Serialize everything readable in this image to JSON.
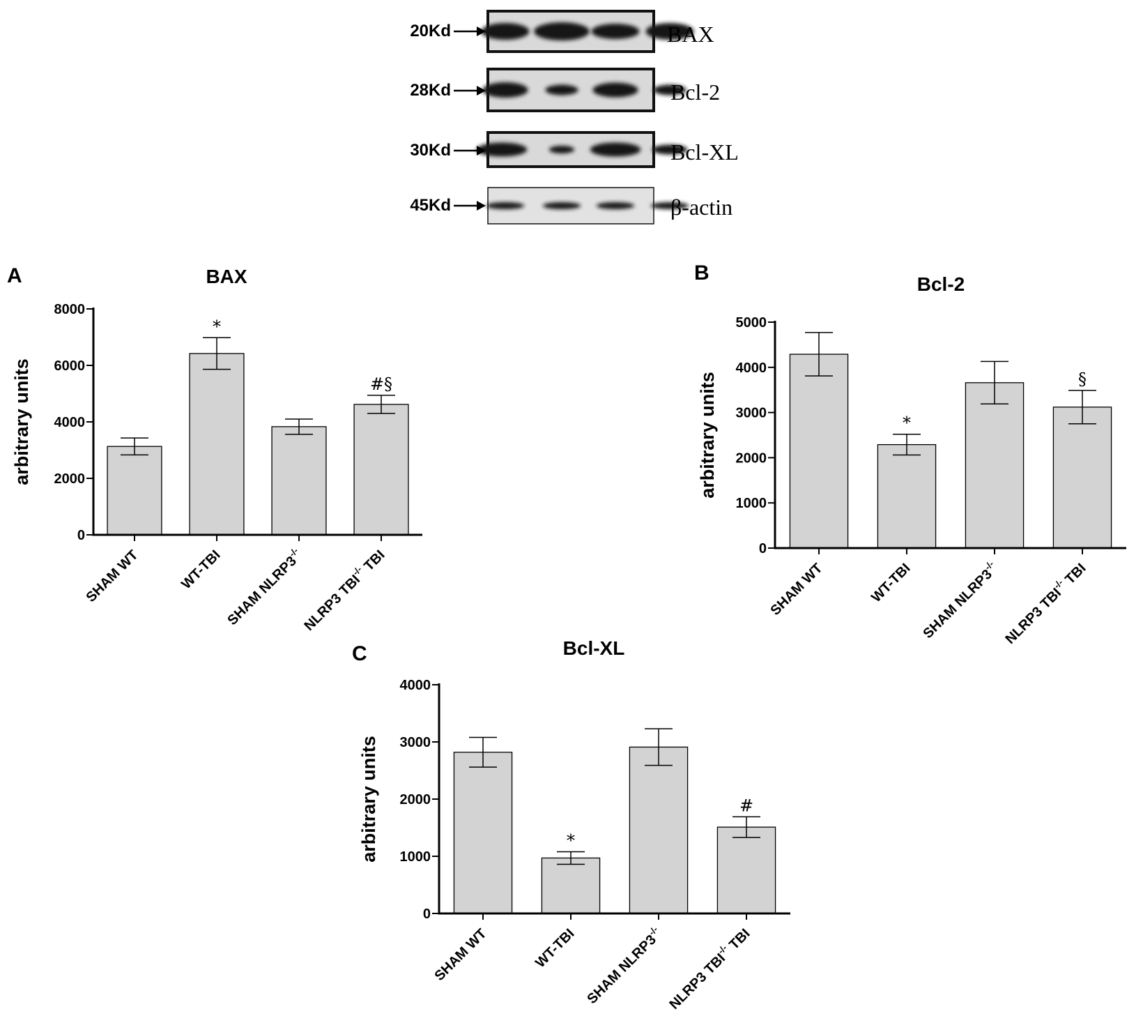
{
  "blot": {
    "rows": [
      {
        "kd": "20Kd",
        "protein": "BAX"
      },
      {
        "kd": "28Kd",
        "protein": "Bcl-2"
      },
      {
        "kd": "30Kd",
        "protein": "Bcl-XL"
      },
      {
        "kd": "45Kd",
        "protein": "β-actin"
      }
    ],
    "colors": {
      "band": "#161616",
      "frame": "#111111",
      "bg": "#d9d9d9"
    }
  },
  "chart_data": [
    {
      "type": "bar",
      "panel": "A",
      "title": "BAX",
      "xlabel": "",
      "ylabel": "arbitrary units",
      "categories": [
        "SHAM WT",
        "WT-TBI",
        "SHAM NLRP3",
        "NLRP3 TBI"
      ],
      "cat_superscript": [
        "",
        "",
        "-/-",
        "-/-"
      ],
      "cat_suffix": [
        "",
        "",
        "",
        " TBI"
      ],
      "values": [
        3130,
        6420,
        3830,
        4620
      ],
      "errors": [
        300,
        560,
        270,
        320
      ],
      "annotations": [
        "",
        "*",
        "",
        "#§"
      ],
      "ylim": [
        0,
        8000
      ],
      "yticks": [
        0,
        2000,
        4000,
        6000,
        8000
      ],
      "grid": false,
      "bar_color": "#d3d3d3"
    },
    {
      "type": "bar",
      "panel": "B",
      "title": "Bcl-2",
      "xlabel": "",
      "ylabel": "arbitrary units",
      "categories": [
        "SHAM WT",
        "WT-TBI",
        "SHAM NLRP3",
        "NLRP3 TBI"
      ],
      "cat_superscript": [
        "",
        "",
        "-/-",
        "-/-"
      ],
      "cat_suffix": [
        "",
        "",
        "",
        " TBI"
      ],
      "values": [
        4290,
        2290,
        3660,
        3120
      ],
      "errors": [
        480,
        230,
        470,
        370
      ],
      "annotations": [
        "",
        "*",
        "",
        "§"
      ],
      "ylim": [
        0,
        5000
      ],
      "yticks": [
        0,
        1000,
        2000,
        3000,
        4000,
        5000
      ],
      "grid": false,
      "bar_color": "#d3d3d3"
    },
    {
      "type": "bar",
      "panel": "C",
      "title": "Bcl-XL",
      "xlabel": "",
      "ylabel": "arbitrary units",
      "categories": [
        "SHAM WT",
        "WT-TBI",
        "SHAM NLRP3",
        "NLRP3 TBI"
      ],
      "cat_superscript": [
        "",
        "",
        "-/-",
        "-/-"
      ],
      "cat_suffix": [
        "",
        "",
        "",
        " TBI"
      ],
      "values": [
        2820,
        970,
        2910,
        1510
      ],
      "errors": [
        260,
        110,
        320,
        180
      ],
      "annotations": [
        "",
        "*",
        "",
        "#"
      ],
      "ylim": [
        0,
        4000
      ],
      "yticks": [
        0,
        1000,
        2000,
        3000,
        4000
      ],
      "grid": false,
      "bar_color": "#d3d3d3"
    }
  ]
}
